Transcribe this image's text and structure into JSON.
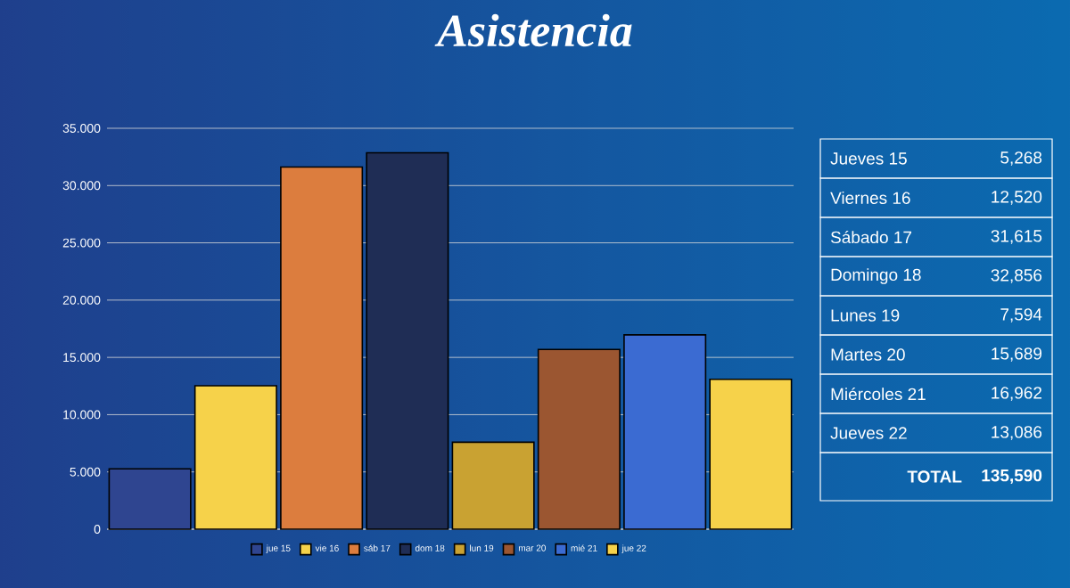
{
  "chart_data": {
    "type": "bar",
    "title": "Asistencia",
    "categories": [
      null,
      null,
      null,
      null,
      null,
      null,
      null,
      null
    ],
    "series": [
      {
        "name": "jue 15",
        "color": "#2f4590",
        "values": [
          5268,
          null,
          null,
          null,
          null,
          null,
          null,
          null
        ]
      },
      {
        "name": "vie 16",
        "color": "#f6d24a",
        "values": [
          null,
          12520,
          null,
          null,
          null,
          null,
          null,
          null
        ]
      },
      {
        "name": "sáb 17",
        "color": "#dc7d3e",
        "values": [
          null,
          null,
          31615,
          null,
          null,
          null,
          null,
          null
        ]
      },
      {
        "name": "dom 18",
        "color": "#1f2d55",
        "values": [
          null,
          null,
          null,
          32856,
          null,
          null,
          null,
          null
        ]
      },
      {
        "name": "lun 19",
        "color": "#c9a232",
        "values": [
          null,
          null,
          null,
          null,
          7594,
          null,
          null,
          null
        ]
      },
      {
        "name": "mar 20",
        "color": "#9b5631",
        "values": [
          null,
          null,
          null,
          null,
          null,
          15689,
          null,
          null
        ]
      },
      {
        "name": "mié 21",
        "color": "#3b6bd2",
        "values": [
          null,
          null,
          null,
          null,
          null,
          null,
          16962,
          null
        ]
      },
      {
        "name": "jue 22",
        "color": "#f6d24a",
        "values": [
          null,
          null,
          null,
          null,
          null,
          null,
          null,
          13086
        ]
      }
    ],
    "annotations": [
      "Jueves 15",
      "5,268",
      "Viernes 16",
      "12,520",
      "Sábado 17",
      "31,615",
      "Domingo 18",
      "32,856",
      "Lunes 19",
      "7,594",
      "Martes 20",
      "15,689",
      "Miércoles 21",
      "16,962",
      "Jueves 22",
      "13,086",
      "TOTAL",
      "135,590"
    ],
    "ylim": [
      0,
      35000
    ],
    "yticks": [
      {
        "value": 0,
        "label": "0"
      },
      {
        "value": 5000,
        "label": "5.000"
      },
      {
        "value": 10000,
        "label": "10.000"
      },
      {
        "value": 15000,
        "label": "15.000"
      },
      {
        "value": 20000,
        "label": "20.000"
      },
      {
        "value": 25000,
        "label": "25.000"
      },
      {
        "value": 30000,
        "label": "30.000"
      },
      {
        "value": 35000,
        "label": "35.000"
      }
    ],
    "grid": "y",
    "legend": "bottom",
    "tick_labels": "y"
  }
}
